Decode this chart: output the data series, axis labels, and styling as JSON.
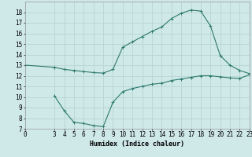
{
  "xlabel": "Humidex (Indice chaleur)",
  "bg_color": "#cfe8e8",
  "grid_color": "#b8d4d4",
  "line_color": "#2d7a6e",
  "xlim": [
    0,
    23
  ],
  "ylim": [
    7,
    19
  ],
  "xticks": [
    0,
    3,
    4,
    5,
    6,
    7,
    8,
    9,
    10,
    11,
    12,
    13,
    14,
    15,
    16,
    17,
    18,
    19,
    20,
    21,
    22,
    23
  ],
  "yticks": [
    7,
    8,
    9,
    10,
    11,
    12,
    13,
    14,
    15,
    16,
    17,
    18
  ],
  "curve1_x": [
    0,
    3,
    4,
    5,
    6,
    7,
    8,
    9,
    10,
    11,
    12,
    13,
    14,
    15,
    16,
    17,
    18,
    19,
    20,
    21,
    22,
    23
  ],
  "curve1_y": [
    13.0,
    12.8,
    12.6,
    12.5,
    12.4,
    12.3,
    12.25,
    12.6,
    14.7,
    15.2,
    15.7,
    16.2,
    16.6,
    17.4,
    17.9,
    18.2,
    18.1,
    16.7,
    13.9,
    13.0,
    12.5,
    12.2
  ],
  "curve2_x": [
    3,
    4,
    5,
    6,
    7,
    8,
    9,
    10,
    11,
    12,
    13,
    14,
    15,
    16,
    17,
    18,
    19,
    20,
    21,
    22,
    23
  ],
  "curve2_y": [
    10.1,
    8.7,
    7.6,
    7.5,
    7.3,
    7.2,
    9.5,
    10.5,
    10.8,
    11.0,
    11.2,
    11.3,
    11.55,
    11.7,
    11.85,
    12.0,
    12.0,
    11.9,
    11.8,
    11.75,
    12.1
  ],
  "xlabel_fontsize": 6,
  "tick_fontsize": 5.5,
  "linewidth": 0.8,
  "markersize": 2.5
}
